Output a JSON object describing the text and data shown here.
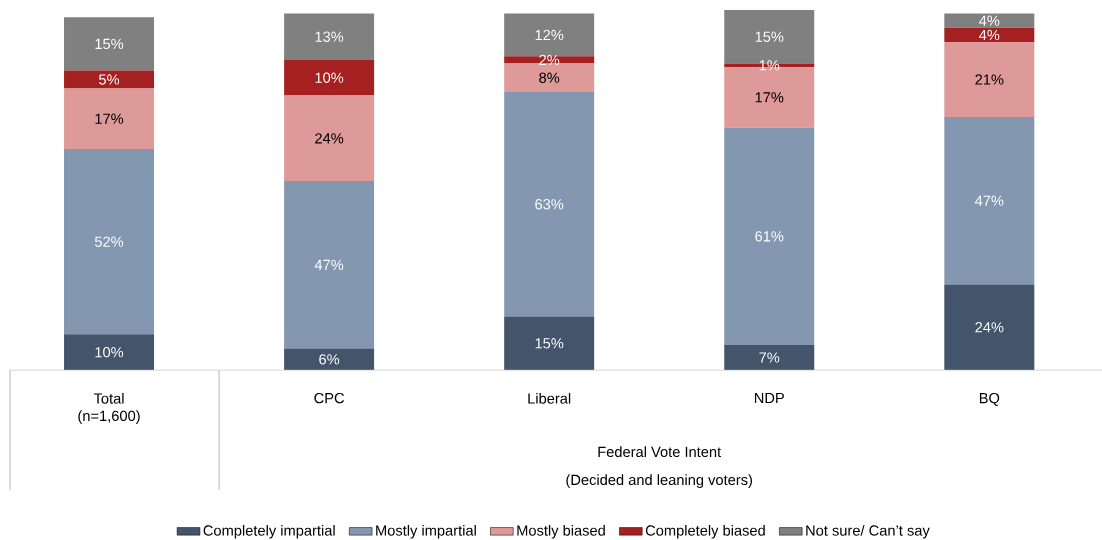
{
  "chart_data": {
    "type": "bar",
    "stacked": true,
    "categories": [
      "Total (n=1,600)",
      "CPC",
      "Liberal",
      "NDP",
      "BQ"
    ],
    "xlabel": "Federal Vote Intent",
    "annotations": [
      "(Decided and leaning voters)"
    ],
    "ylim": [
      0,
      101
    ],
    "tick_labels": "x",
    "legend": "bottom",
    "series": [
      {
        "name": "Completely impartial",
        "color": "#44546a",
        "values": [
          10,
          6,
          15,
          7,
          24
        ],
        "value_labels": [
          "10%",
          "6%",
          "15%",
          "7%",
          "24%"
        ]
      },
      {
        "name": "Mostly impartial",
        "color": "#8497b0",
        "values": [
          52,
          47,
          63,
          61,
          47
        ],
        "value_labels": [
          "52%",
          "47%",
          "63%",
          "61%",
          "47%"
        ]
      },
      {
        "name": "Mostly biased",
        "color": "#de9a98",
        "values": [
          17,
          24,
          8,
          17,
          21
        ],
        "value_labels": [
          "17%",
          "24%",
          "8%",
          "17%",
          "21%"
        ]
      },
      {
        "name": "Completely biased",
        "color": "#a52121",
        "values": [
          5,
          10,
          2,
          1,
          4
        ],
        "value_labels": [
          "5%",
          "10%",
          "2%",
          "1%",
          "4%"
        ]
      },
      {
        "name": "Not sure/ Can’t say",
        "color": "#808080",
        "values": [
          15,
          13,
          12,
          15,
          4
        ],
        "value_labels": [
          "15%",
          "13%",
          "12%",
          "15%",
          "4%"
        ]
      }
    ]
  }
}
